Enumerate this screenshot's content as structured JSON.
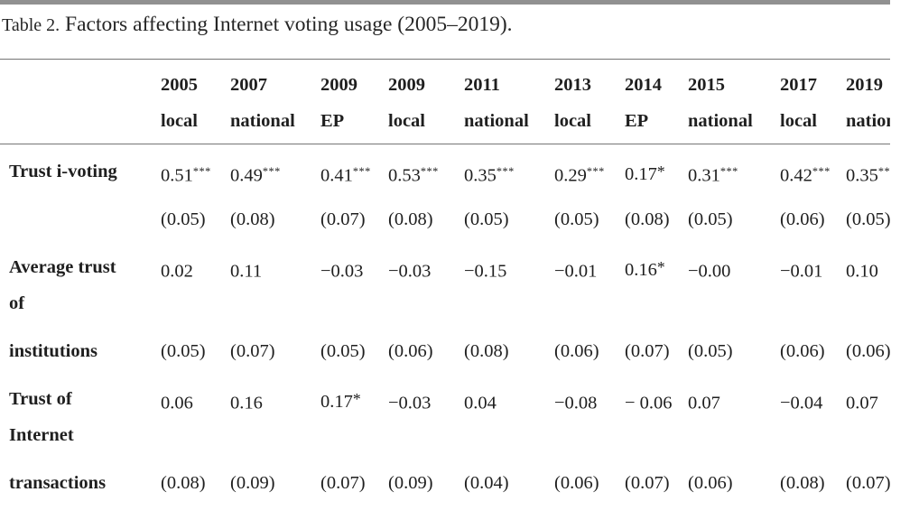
{
  "title": {
    "label": "Table 2.",
    "text": "Factors affecting Internet voting usage (2005–2019)."
  },
  "colors": {
    "top_bar": "#919191",
    "rule": "#757575",
    "text": "#1f1f1f"
  },
  "table": {
    "columns": [
      {
        "year": "2005",
        "type": "local"
      },
      {
        "year": "2007",
        "type": "national"
      },
      {
        "year": "2009",
        "type": "EP"
      },
      {
        "year": "2009",
        "type": "local"
      },
      {
        "year": "2011",
        "type": "national"
      },
      {
        "year": "2013",
        "type": "local"
      },
      {
        "year": "2014",
        "type": "EP"
      },
      {
        "year": "2015",
        "type": "national"
      },
      {
        "year": "2017",
        "type": "local"
      },
      {
        "year": "2019",
        "type": "national"
      }
    ],
    "rows": [
      {
        "label_main": "Trust i-voting",
        "label_cont": "",
        "cells": [
          {
            "est": "0.51",
            "stars": "***",
            "se": "(0.05)"
          },
          {
            "est": "0.49",
            "stars": "***",
            "se": "(0.08)"
          },
          {
            "est": "0.41",
            "stars": "***",
            "se": "(0.07)"
          },
          {
            "est": "0.53",
            "stars": "***",
            "se": "(0.08)"
          },
          {
            "est": "0.35",
            "stars": "***",
            "se": "(0.05)"
          },
          {
            "est": "0.29",
            "stars": "***",
            "se": "(0.05)"
          },
          {
            "est": "0.17",
            "stars": "*",
            "se": "(0.08)"
          },
          {
            "est": "0.31",
            "stars": "***",
            "se": "(0.05)"
          },
          {
            "est": "0.42",
            "stars": "***",
            "se": "(0.06)"
          },
          {
            "est": "0.35",
            "stars": "***",
            "se": "(0.05)"
          }
        ]
      },
      {
        "label_main": "Average trust\nof",
        "label_cont": "institutions",
        "cells": [
          {
            "est": "0.02",
            "stars": "",
            "se": "(0.05)"
          },
          {
            "est": "0.11",
            "stars": "",
            "se": "(0.07)"
          },
          {
            "est": "−0.03",
            "stars": "",
            "se": "(0.05)"
          },
          {
            "est": "−0.03",
            "stars": "",
            "se": "(0.06)"
          },
          {
            "est": "−0.15",
            "stars": "",
            "se": "(0.08)"
          },
          {
            "est": "−0.01",
            "stars": "",
            "se": "(0.06)"
          },
          {
            "est": "0.16",
            "stars": "*",
            "se": "(0.07)"
          },
          {
            "est": "−0.00",
            "stars": "",
            "se": "(0.05)"
          },
          {
            "est": "−0.01",
            "stars": "",
            "se": "(0.06)"
          },
          {
            "est": "0.10",
            "stars": "",
            "se": "(0.06)"
          }
        ]
      },
      {
        "label_main": "Trust of\nInternet",
        "label_cont": "transactions",
        "cells": [
          {
            "est": "0.06",
            "stars": "",
            "se": "(0.08)"
          },
          {
            "est": "0.16",
            "stars": "",
            "se": "(0.09)"
          },
          {
            "est": "0.17",
            "stars": "*",
            "se": "(0.07)"
          },
          {
            "est": "−0.03",
            "stars": "",
            "se": "(0.09)"
          },
          {
            "est": "0.04",
            "stars": "",
            "se": "(0.04)"
          },
          {
            "est": "−0.08",
            "stars": "",
            "se": "(0.06)"
          },
          {
            "est": "−\n0.06",
            "stars": "",
            "se": "(0.07)"
          },
          {
            "est": "0.07",
            "stars": "",
            "se": "(0.06)"
          },
          {
            "est": "−0.04",
            "stars": "",
            "se": "(0.08)"
          },
          {
            "est": "0.07",
            "stars": "",
            "se": "(0.07)"
          }
        ]
      }
    ]
  }
}
